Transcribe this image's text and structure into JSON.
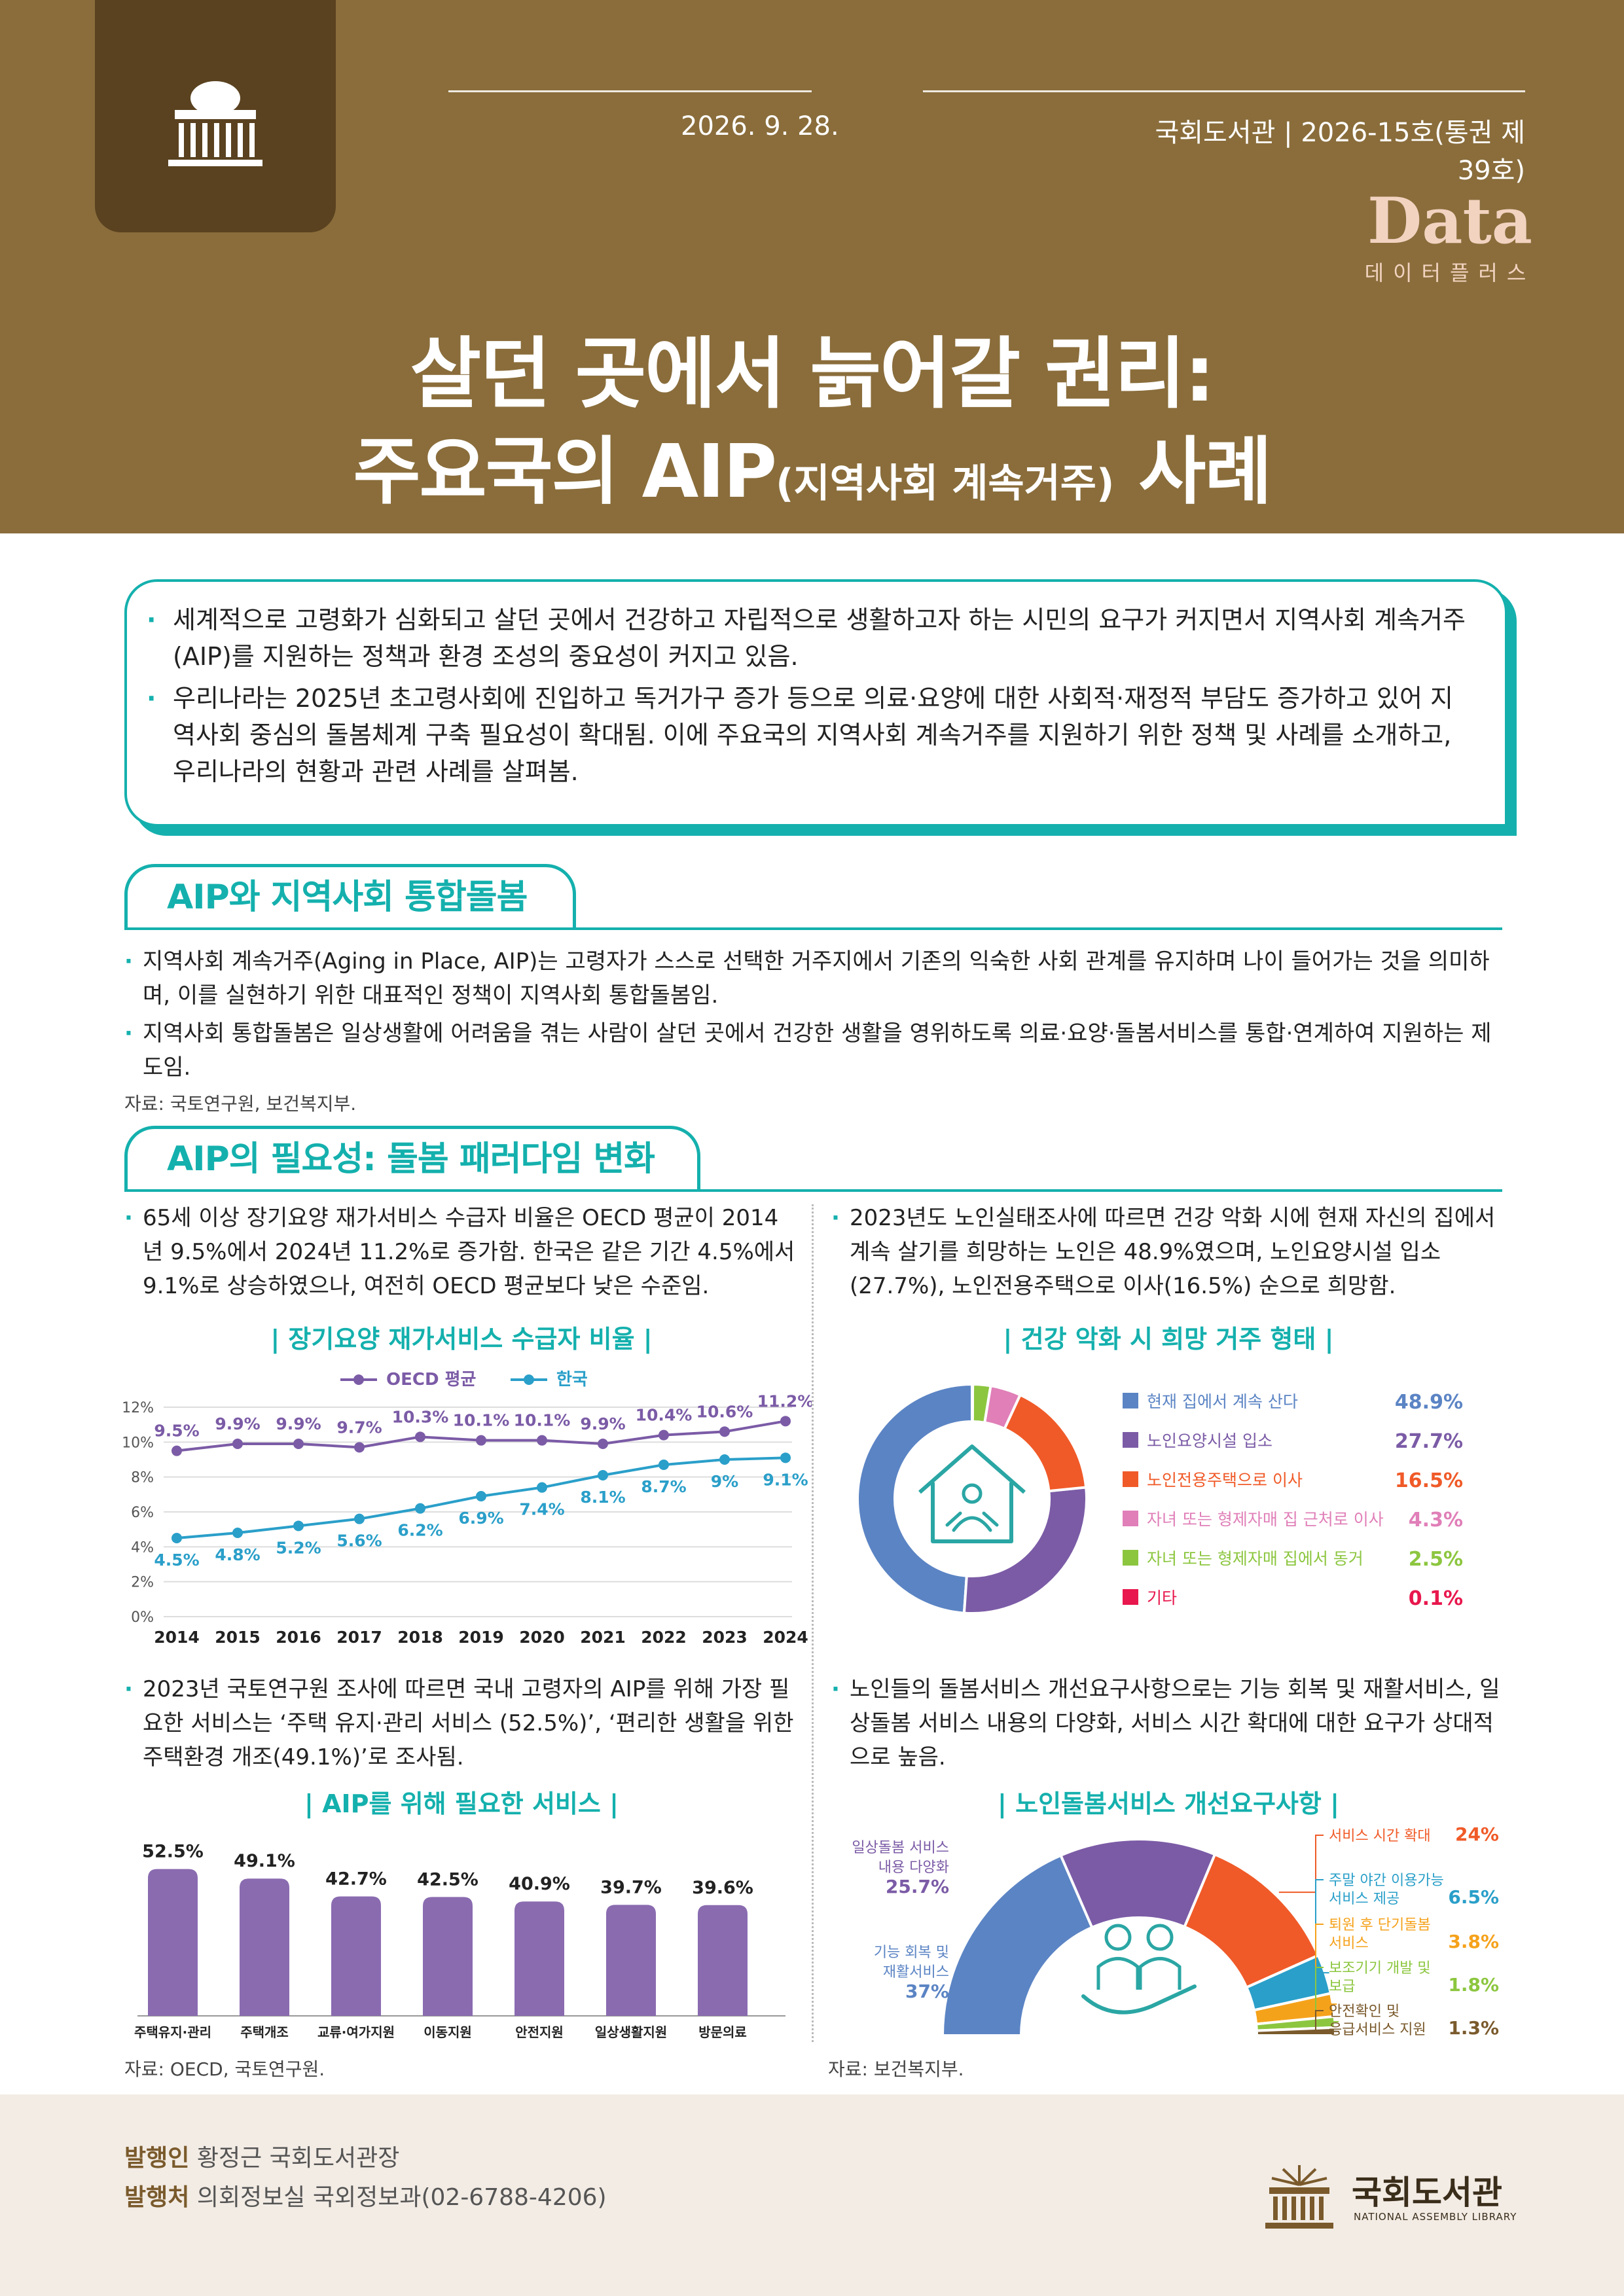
{
  "header": {
    "date": "2026. 9. 28.",
    "issue": "국회도서관 | 2026-15호(통권 제39호)",
    "brand_main": "Data",
    "brand_sub": "데이터플러스",
    "title_line1": "살던 곳에서 늙어갈 권리:",
    "title_line2_a": "주요국의 AIP",
    "title_line2_b": "(지역사회 계속거주)",
    "title_line2_c": " 사례"
  },
  "intro": {
    "bullets": [
      "세계적으로 고령화가 심화되고 살던 곳에서 건강하고 자립적으로 생활하고자 하는 시민의 요구가 커지면서 지역사회 계속거주(AIP)를 지원하는 정책과 환경 조성의 중요성이 커지고 있음.",
      "우리나라는 2025년 초고령사회에 진입하고 독거가구 증가 등으로 의료·요양에 대한 사회적·재정적 부담도 증가하고 있어 지역사회 중심의 돌봄체계 구축 필요성이 확대됨. 이에 주요국의 지역사회 계속거주를 지원하기 위한 정책 및 사례를 소개하고, 우리나라의 현황과 관련 사례를 살펴봄."
    ]
  },
  "section1": {
    "title": "AIP와 지역사회 통합돌봄",
    "bullets": [
      "지역사회 계속거주(Aging in Place, AIP)는 고령자가 스스로 선택한 거주지에서 기존의 익숙한 사회 관계를 유지하며 나이 들어가는 것을 의미하며, 이를 실현하기 위한 대표적인 정책이 지역사회 통합돌봄임.",
      "지역사회 통합돌봄은 일상생활에 어려움을 겪는 사람이 살던 곳에서 건강한 생활을 영위하도록 의료·요양·돌봄서비스를 통합·연계하여 지원하는 제도임."
    ],
    "source": "자료: 국토연구원, 보건복지부."
  },
  "section2": {
    "title": "AIP의 필요성: 돌봄 패러다임 변화",
    "left_bullet_top": "65세 이상 장기요양 재가서비스 수급자 비율은 OECD 평균이 2014년 9.5%에서 2024년 11.2%로 증가함. 한국은 같은 기간 4.5%에서 9.1%로 상승하였으나, 여전히 OECD 평균보다 낮은 수준임.",
    "right_bullet_top": "2023년도 노인실태조사에 따르면 건강 악화 시에 현재 자신의 집에서 계속 살기를 희망하는 노인은 48.9%였으며, 노인요양시설 입소(27.7%), 노인전용주택으로 이사(16.5%) 순으로 희망함.",
    "left_bullet_bottom": "2023년 국토연구원 조사에 따르면 국내 고령자의 AIP를 위해 가장 필요한 서비스는 ‘주택 유지·관리 서비스 (52.5%)’, ‘편리한 생활을 위한 주택환경 개조(49.1%)’로 조사됨.",
    "right_bullet_bottom": "노인들의 돌봄서비스 개선요구사항으로는 기능 회복 및 재활서비스, 일상돌봄 서비스 내용의 다양화, 서비스 시간 확대에 대한 요구가 상대적으로 높음.",
    "source_left": "자료: OECD, 국토연구원.",
    "source_right": "자료: 보건복지부."
  },
  "chart_data": [
    {
      "type": "line",
      "title": "| 장기요양 재가서비스 수급자 비율 |",
      "x": [
        "2014",
        "2015",
        "2016",
        "2017",
        "2018",
        "2019",
        "2020",
        "2021",
        "2022",
        "2023",
        "2024"
      ],
      "series": [
        {
          "name": "OECD 평균",
          "values": [
            9.5,
            9.9,
            9.9,
            9.7,
            10.3,
            10.1,
            10.1,
            9.9,
            10.4,
            10.6,
            11.2
          ],
          "color": "#7b5ba6"
        },
        {
          "name": "한국",
          "values": [
            4.5,
            4.8,
            5.2,
            5.6,
            6.2,
            6.9,
            7.4,
            8.1,
            8.7,
            9.0,
            9.1
          ],
          "color": "#2a9fc9"
        }
      ],
      "labels_oecd": [
        "9.5%",
        "9.9%",
        "9.9%",
        "9.7%",
        "10.3%",
        "10.1%",
        "10.1%",
        "9.9%",
        "10.4%",
        "10.6%",
        "11.2%"
      ],
      "labels_korea": [
        "4.5%",
        "4.8%",
        "5.2%",
        "5.6%",
        "6.2%",
        "6.9%",
        "7.4%",
        "8.1%",
        "8.7%",
        "9%",
        "9.1%"
      ],
      "yticks": [
        "0%",
        "2%",
        "4%",
        "6%",
        "8%",
        "10%",
        "12%"
      ],
      "ylim": [
        0,
        12
      ]
    },
    {
      "type": "pie",
      "title": "| 건강 악화 시 희망 거주 형태 |",
      "categories": [
        "현재 집에서 계속 산다",
        "노인요양시설 입소",
        "노인전용주택으로 이사",
        "자녀 또는 형제자매 집 근처로 이사",
        "자녀 또는 형제자매 집에서 동거",
        "기타"
      ],
      "values": [
        48.9,
        27.7,
        16.5,
        4.3,
        2.5,
        0.1
      ],
      "labels": [
        "48.9%",
        "27.7%",
        "16.5%",
        "4.3%",
        "2.5%",
        "0.1%"
      ],
      "colors": [
        "#5b84c4",
        "#7b5ba6",
        "#f05a28",
        "#e07fb8",
        "#8cc63f",
        "#e8174d"
      ]
    },
    {
      "type": "bar",
      "title": "| AIP를 위해 필요한 서비스 |",
      "categories": [
        "주택유지·관리",
        "주택개조",
        "교류·여가지원",
        "이동지원",
        "안전지원",
        "일상생활지원",
        "방문의료"
      ],
      "values": [
        52.5,
        49.1,
        42.7,
        42.5,
        40.9,
        39.7,
        39.6
      ],
      "labels": [
        "52.5%",
        "49.1%",
        "42.7%",
        "42.5%",
        "40.9%",
        "39.7%",
        "39.6%"
      ],
      "color": "#8a6bb0"
    },
    {
      "type": "pie",
      "title": "| 노인돌봄서비스 개선요구사항 |",
      "categories": [
        "기능 회복 및 재활서비스",
        "일상돌봄 서비스 내용 다양화",
        "서비스 시간 확대",
        "주말 야간 이용가능 서비스 제공",
        "퇴원 후 단기돌봄 서비스",
        "보조기기 개발 및 보급",
        "안전확인 및 응급서비스 지원"
      ],
      "values": [
        37,
        25.7,
        24,
        6.5,
        3.8,
        1.8,
        1.3
      ],
      "labels": [
        "37%",
        "25.7%",
        "24%",
        "6.5%",
        "3.8%",
        "1.8%",
        "1.3%"
      ],
      "colors": [
        "#5b84c4",
        "#7b5ba6",
        "#f05a28",
        "#2a9fc9",
        "#f5a21b",
        "#8cc63f",
        "#7a5a2c"
      ]
    }
  ],
  "footer": {
    "publisher_label": "발행인",
    "publisher": " 황정근 국회도서관장",
    "office_label": "발행처",
    "office": " 의회정보실 국외정보과(02-6788-4206)",
    "org_name": "국회도서관",
    "org_name_en": "NATIONAL ASSEMBLY LIBRARY"
  }
}
